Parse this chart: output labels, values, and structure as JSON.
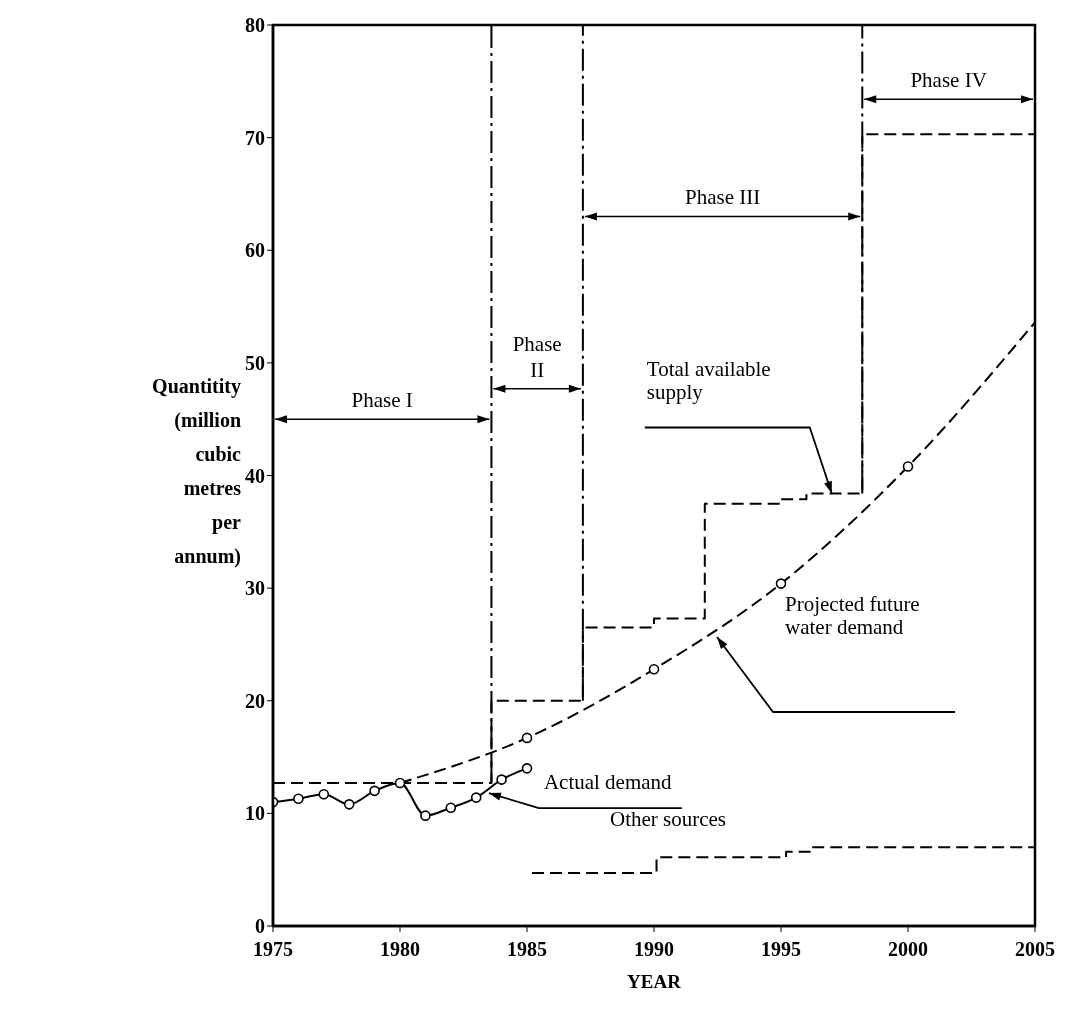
{
  "chart_data": {
    "type": "line",
    "xlabel": "YEAR",
    "ylabel": "Quantitity (million cubic metres per annum)",
    "xlim": [
      1975,
      2005
    ],
    "xticks": [
      1975,
      1980,
      1985,
      1990,
      1995,
      2000,
      2005
    ],
    "ylim": [
      0,
      80
    ],
    "yticks": [
      0,
      10,
      20,
      30,
      40,
      50,
      60,
      70,
      80
    ],
    "series": [
      {
        "color": "#000000",
        "marker": "circle",
        "line_style": "solid",
        "x": [
          1975,
          1976,
          1977,
          1978,
          1979,
          1980,
          1981,
          1982,
          1983,
          1984,
          1985
        ],
        "values": [
          11.0,
          11.3,
          11.7,
          10.8,
          12.0,
          12.7,
          9.8,
          10.5,
          11.4,
          13.0,
          14.0
        ]
      },
      {
        "color": "#000000",
        "marker": "none",
        "line_style": "dashed",
        "x": [
          1980,
          1985,
          1990,
          1995,
          2000,
          2005
        ],
        "values": [
          12.7,
          16.7,
          22.8,
          30.4,
          40.8,
          53.6
        ]
      },
      {
        "type": "scatter",
        "color": "#000000",
        "marker": "circle",
        "x": [
          1985,
          1990,
          1995,
          2000
        ],
        "values": [
          16.7,
          22.8,
          30.4,
          40.8
        ]
      },
      {
        "type": "step",
        "color": "#000000",
        "marker": "none",
        "line_style": "dashed",
        "x": [
          1975,
          1983.6,
          1987.2,
          1990,
          1992,
          1995,
          1996,
          1998.2,
          2005
        ],
        "values": [
          12.7,
          20.0,
          26.5,
          27.3,
          37.5,
          37.9,
          38.4,
          70.3,
          70.3
        ]
      },
      {
        "type": "step",
        "color": "#000000",
        "marker": "none",
        "line_style": "dashed",
        "x": [
          1985.2,
          1990.1,
          1995.2,
          1996.2,
          2005
        ],
        "values": [
          4.7,
          6.1,
          6.6,
          7.0,
          7.0
        ]
      }
    ],
    "ref_lines": [
      {
        "axis": "x",
        "value": 1983.6,
        "line_style": "dashed",
        "color": "#000000"
      },
      {
        "axis": "x",
        "value": 1987.2,
        "line_style": "dashed",
        "color": "#000000"
      },
      {
        "axis": "x",
        "value": 1998.2,
        "line_style": "dashed",
        "color": "#000000"
      }
    ],
    "annotations": [
      "Phase I",
      "Phase II",
      "Phase III",
      "Phase IV",
      {
        "text": "Total available supply",
        "x": 1997,
        "y": 38.4
      },
      "Projected future water demand",
      {
        "text": "Actual demand",
        "x": 1983.5,
        "y": 11.8
      },
      "Other sources"
    ]
  }
}
